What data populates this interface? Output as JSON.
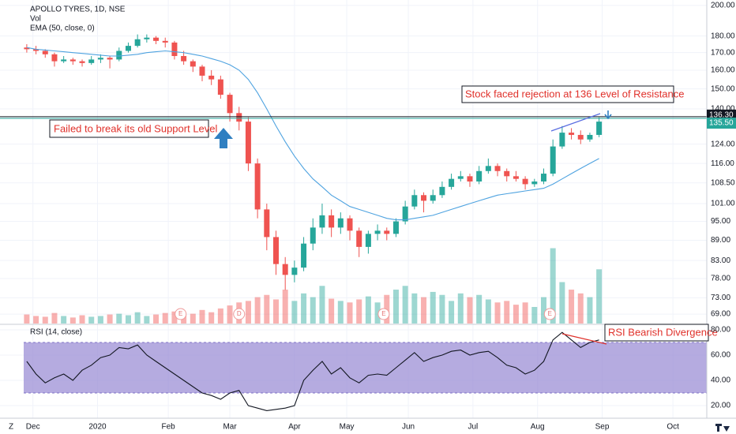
{
  "chart_data": {
    "type": "candlestick",
    "title": "APOLLO TYRES, 1D, NSE",
    "volume_label": "Vol",
    "log_scale": true,
    "grid": true,
    "up_color": "#26a69a",
    "down_color": "#ef5350",
    "xlim": [
      -1,
      221
    ],
    "xticks": [
      {
        "value": 2,
        "label": "Dec"
      },
      {
        "value": 23,
        "label": "2020"
      },
      {
        "value": 46,
        "label": "Feb"
      },
      {
        "value": 66,
        "label": "Mar"
      },
      {
        "value": 87,
        "label": "Apr"
      },
      {
        "value": 104,
        "label": "May"
      },
      {
        "value": 124,
        "label": "Jun"
      },
      {
        "value": 145,
        "label": "Jul"
      },
      {
        "value": 166,
        "label": "Aug"
      },
      {
        "value": 187,
        "label": "Sep"
      },
      {
        "value": 210,
        "label": "Oct"
      }
    ],
    "ylim": [
      66.8,
      203.8
    ],
    "yticks": [
      {
        "value": 200,
        "label": "200.00"
      },
      {
        "value": 180,
        "label": "180.00"
      },
      {
        "value": 170,
        "label": "170.00"
      },
      {
        "value": 160,
        "label": "160.00"
      },
      {
        "value": 150,
        "label": "150.00"
      },
      {
        "value": 140,
        "label": "140.00"
      },
      {
        "value": 124,
        "label": "124.00"
      },
      {
        "value": 116,
        "label": "116.00"
      },
      {
        "value": 108.5,
        "label": "108.50"
      },
      {
        "value": 101,
        "label": "101.00"
      },
      {
        "value": 95,
        "label": "95.00"
      },
      {
        "value": 89,
        "label": "89.00"
      },
      {
        "value": 83,
        "label": "83.00"
      },
      {
        "value": 78,
        "label": "78.00"
      },
      {
        "value": 73,
        "label": "73.00"
      },
      {
        "value": 69,
        "label": "69.00"
      }
    ],
    "x": [
      0,
      3,
      6,
      9,
      12,
      15,
      18,
      21,
      24,
      27,
      30,
      33,
      36,
      39,
      42,
      45,
      48,
      51,
      54,
      57,
      60,
      63,
      66,
      69,
      72,
      75,
      78,
      81,
      84,
      87,
      90,
      93,
      96,
      99,
      102,
      105,
      108,
      111,
      114,
      117,
      120,
      123,
      126,
      129,
      132,
      135,
      138,
      141,
      144,
      147,
      150,
      153,
      156,
      159,
      162,
      165,
      168,
      171,
      174,
      177,
      180,
      183,
      186
    ],
    "open": [
      173,
      172,
      171,
      169,
      165,
      166,
      165,
      164,
      166,
      167,
      166,
      171,
      174,
      178,
      179,
      177,
      176,
      168,
      165,
      162,
      157,
      155,
      147,
      138,
      134,
      116,
      99,
      90,
      82,
      79,
      81,
      88,
      93,
      97,
      93,
      96,
      92,
      87,
      91,
      92,
      91,
      95,
      100,
      104,
      102,
      104,
      107,
      110,
      111,
      109,
      113,
      115,
      113,
      111,
      110,
      108,
      109,
      112,
      123,
      129,
      128,
      126,
      128
    ],
    "high": [
      175,
      174,
      172,
      170,
      168,
      167,
      166,
      168,
      169,
      168,
      173,
      176,
      181,
      181,
      180,
      179,
      177,
      171,
      166,
      163,
      160,
      157,
      148,
      141,
      136,
      118,
      101,
      92,
      84,
      83,
      90,
      96,
      101,
      99,
      98,
      97,
      93,
      92,
      94,
      93,
      96,
      102,
      106,
      105,
      106,
      109,
      112,
      113,
      112,
      115,
      118,
      116,
      114,
      113,
      111,
      110,
      114,
      126,
      132,
      131,
      130,
      129,
      136
    ],
    "low": [
      170,
      169,
      167,
      162,
      164,
      163,
      162,
      163,
      164,
      161,
      165,
      170,
      173,
      176,
      175,
      173,
      166,
      163,
      159,
      154,
      152,
      145,
      134,
      130,
      113,
      96,
      86,
      79,
      75,
      77,
      80,
      86,
      91,
      90,
      91,
      89,
      84,
      85,
      89,
      89,
      90,
      94,
      99,
      98,
      101,
      103,
      106,
      109,
      107,
      108,
      112,
      111,
      109,
      109,
      106,
      107,
      108,
      111,
      122,
      126,
      124,
      125,
      127
    ],
    "close": [
      172,
      171,
      169,
      165,
      166,
      165,
      164,
      166,
      167,
      166,
      171,
      174,
      178,
      179,
      177,
      176,
      168,
      165,
      162,
      157,
      155,
      147,
      138,
      134,
      116,
      99,
      90,
      82,
      79,
      81,
      88,
      93,
      97,
      93,
      96,
      92,
      87,
      91,
      92,
      91,
      95,
      100,
      104,
      102,
      104,
      107,
      110,
      111,
      109,
      113,
      115,
      113,
      111,
      110,
      108,
      109,
      112,
      123,
      129,
      128,
      126,
      128,
      134
    ],
    "volume": [
      12,
      10,
      9,
      14,
      10,
      8,
      11,
      9,
      10,
      12,
      13,
      11,
      15,
      10,
      12,
      14,
      16,
      12,
      13,
      18,
      15,
      20,
      24,
      28,
      30,
      35,
      38,
      32,
      45,
      30,
      40,
      35,
      50,
      33,
      30,
      28,
      32,
      36,
      28,
      38,
      45,
      50,
      40,
      35,
      42,
      38,
      30,
      40,
      35,
      38,
      32,
      28,
      30,
      25,
      28,
      22,
      35,
      100,
      55,
      45,
      40,
      35,
      72
    ],
    "volume_ylim": [
      0,
      110
    ],
    "ema": {
      "name": "EMA (50, close, 0)",
      "color": "#4fa3e0",
      "values": [
        173,
        172,
        171.5,
        171,
        170.5,
        170,
        169.5,
        169,
        168.5,
        168,
        168,
        168.5,
        169,
        170,
        170.5,
        171,
        170.5,
        170,
        169,
        168,
        166.5,
        165,
        163,
        160,
        155,
        148,
        140,
        132,
        125,
        119,
        114,
        110,
        107,
        104,
        102,
        100,
        99,
        98,
        97,
        96,
        95.5,
        95.5,
        96,
        96.5,
        97,
        98,
        99,
        100,
        101,
        102,
        103,
        104,
        104.5,
        105,
        105.5,
        106,
        106.5,
        108,
        110,
        112,
        114,
        116,
        118
      ]
    },
    "price_lines": [
      {
        "value": 136.3,
        "label": "136.30",
        "color": "#131722"
      },
      {
        "value": 135.5,
        "label": "135.50",
        "color": "#26a69a"
      }
    ],
    "events": [
      {
        "label": "E",
        "x": 50
      },
      {
        "label": "D",
        "x": 69
      },
      {
        "label": "E",
        "x": 116
      },
      {
        "label": "E",
        "x": 170
      }
    ],
    "annotations": [
      "Failed to break its old Support Level",
      "Stock faced rejection at 136 Level of Resistance",
      "RSI Bearish Divergence"
    ],
    "rsi": {
      "name": "RSI (14, close)",
      "color": "#131722",
      "band": [
        30,
        70
      ],
      "band_color": "#9c8fd6",
      "ylim": [
        10,
        83.75
      ],
      "yticks": [
        {
          "value": 80,
          "label": "80.00"
        },
        {
          "value": 60,
          "label": "60.00"
        },
        {
          "value": 40,
          "label": "40.00"
        },
        {
          "value": 20,
          "label": "20.00"
        }
      ],
      "values": [
        55,
        45,
        38,
        42,
        45,
        40,
        48,
        52,
        58,
        60,
        66,
        65,
        68,
        60,
        55,
        50,
        45,
        40,
        35,
        30,
        28,
        25,
        30,
        32,
        20,
        18,
        16,
        17,
        18,
        20,
        40,
        48,
        55,
        45,
        50,
        42,
        38,
        44,
        45,
        44,
        50,
        56,
        62,
        55,
        58,
        60,
        63,
        64,
        60,
        62,
        63,
        58,
        52,
        50,
        45,
        48,
        55,
        72,
        78,
        72,
        66,
        70,
        72
      ]
    },
    "timezone_button": "Z"
  }
}
